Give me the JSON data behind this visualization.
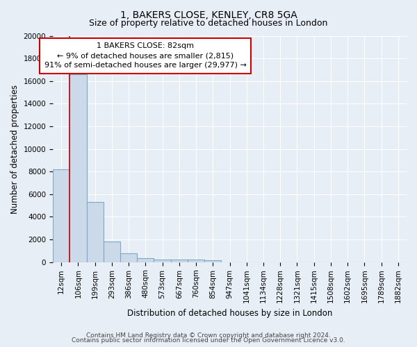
{
  "title": "1, BAKERS CLOSE, KENLEY, CR8 5GA",
  "subtitle": "Size of property relative to detached houses in London",
  "xlabel": "Distribution of detached houses by size in London",
  "ylabel": "Number of detached properties",
  "footer_line1": "Contains HM Land Registry data © Crown copyright and database right 2024.",
  "footer_line2": "Contains public sector information licensed under the Open Government Licence v3.0.",
  "bar_labels": [
    "12sqm",
    "106sqm",
    "199sqm",
    "293sqm",
    "386sqm",
    "480sqm",
    "573sqm",
    "667sqm",
    "760sqm",
    "854sqm",
    "947sqm",
    "1041sqm",
    "1134sqm",
    "1228sqm",
    "1321sqm",
    "1415sqm",
    "1508sqm",
    "1602sqm",
    "1695sqm",
    "1789sqm",
    "1882sqm"
  ],
  "bar_heights": [
    8200,
    16600,
    5300,
    1850,
    800,
    350,
    250,
    220,
    200,
    150,
    0,
    0,
    0,
    0,
    0,
    0,
    0,
    0,
    0,
    0,
    0
  ],
  "bar_color": "#ccd9e8",
  "bar_edge_color": "#7aaac8",
  "annotation_line1": "1 BAKERS CLOSE: 82sqm",
  "annotation_line2": "← 9% of detached houses are smaller (2,815)",
  "annotation_line3": "91% of semi-detached houses are larger (29,977) →",
  "ylim": [
    0,
    20000
  ],
  "yticks": [
    0,
    2000,
    4000,
    6000,
    8000,
    10000,
    12000,
    14000,
    16000,
    18000,
    20000
  ],
  "bg_color": "#e8eef5",
  "plot_bg_color": "#e8eef5",
  "grid_color": "#ffffff",
  "red_line_color": "#cc0000",
  "box_edge_color": "#cc0000",
  "title_fontsize": 10,
  "subtitle_fontsize": 9,
  "axis_label_fontsize": 8.5,
  "tick_fontsize": 7.5,
  "annotation_fontsize": 8,
  "footer_fontsize": 6.5
}
